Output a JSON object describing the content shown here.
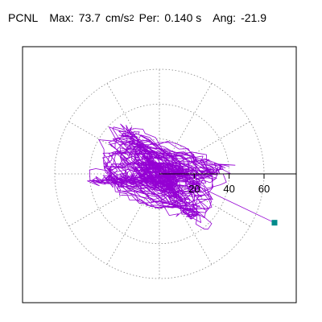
{
  "header": {
    "component": "PCNL",
    "max_label": "Max:",
    "max_value": "73.7",
    "max_unit": "cm/s",
    "max_exponent": "2",
    "period_label": "Per:",
    "period_value": "0.140 s",
    "angle_label": "Ang:",
    "angle_value": "-21.9"
  },
  "colors": {
    "trace": "#9400d3",
    "marker": "#008b8b",
    "grid": "#888888",
    "axis": "#000000"
  },
  "chart_data": {
    "type": "scatter",
    "subtype": "polar-orbit",
    "radial_ticks": [
      20,
      40,
      60
    ],
    "radial_tick_labels": [
      "20",
      "40",
      "60"
    ],
    "rmax": 60,
    "angular_grid_deg": [
      0,
      30,
      60,
      90,
      120,
      150,
      180,
      210,
      240,
      270,
      300,
      330
    ],
    "max_amplitude": 73.7,
    "angle_deg": -21.9,
    "grid": true,
    "end_marker": {
      "x": 66,
      "y": -28
    }
  }
}
